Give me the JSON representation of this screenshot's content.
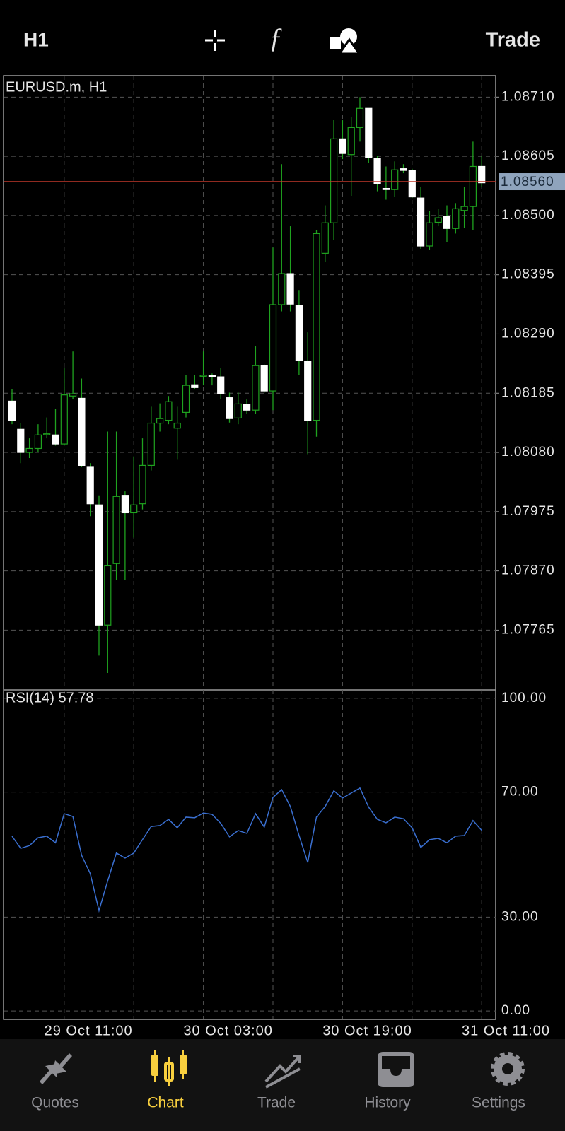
{
  "header": {
    "timeframe": "H1",
    "action": "Trade"
  },
  "chart_data": [
    {
      "type": "candlestick",
      "title": "EURUSD.m, H1",
      "categories": [
        null,
        null,
        null,
        null,
        null,
        null,
        "29 Oct 11:00",
        null,
        null,
        null,
        null,
        null,
        null,
        null,
        null,
        null,
        null,
        null,
        null,
        null,
        null,
        null,
        "30 Oct 03:00",
        null,
        null,
        null,
        null,
        null,
        null,
        null,
        null,
        null,
        null,
        null,
        null,
        null,
        null,
        null,
        "30 Oct 19:00",
        null,
        null,
        null,
        null,
        null,
        null,
        null,
        null,
        null,
        null,
        null,
        null,
        null,
        null,
        null,
        "31 Oct 11:00"
      ],
      "open": [
        1.08171,
        1.08121,
        1.0808,
        1.08087,
        1.08112,
        1.08111,
        1.08095,
        1.0818,
        1.08176,
        1.08055,
        1.07987,
        1.07774,
        1.07883,
        1.08004,
        1.07973,
        1.07989,
        1.08057,
        1.08132,
        1.08137,
        1.08123,
        1.08151,
        1.082,
        1.08215,
        1.08216,
        1.08214,
        1.08177,
        1.08141,
        1.08165,
        1.08155,
        1.08234,
        1.08189,
        1.08342,
        1.08397,
        1.0834,
        1.08241,
        1.08137,
        1.08433,
        1.08487,
        1.08636,
        1.08608,
        1.08656,
        1.0869,
        1.08601,
        1.08548,
        1.08546,
        1.08583,
        1.0858,
        1.08531,
        1.08446,
        1.08488,
        1.08498,
        1.08477,
        1.08509,
        1.08516,
        1.08587
      ],
      "high": [
        1.08192,
        1.08132,
        1.08105,
        1.0813,
        1.08142,
        1.08157,
        1.0823,
        1.08259,
        1.08211,
        1.08061,
        1.08004,
        1.08117,
        1.08117,
        1.08011,
        1.08073,
        1.08105,
        1.08161,
        1.08167,
        1.0818,
        1.08161,
        1.08217,
        1.08217,
        1.08259,
        1.0822,
        1.0823,
        1.08186,
        1.08186,
        1.08174,
        1.08268,
        1.08236,
        1.08443,
        1.08591,
        1.08481,
        1.08368,
        1.08293,
        1.08474,
        1.08518,
        1.08669,
        1.08669,
        1.08675,
        1.0871,
        1.0869,
        1.08606,
        1.08587,
        1.08596,
        1.08591,
        1.08583,
        1.0855,
        1.08508,
        1.08512,
        1.08518,
        1.08522,
        1.0855,
        1.08631,
        1.08606
      ],
      "low": [
        1.0813,
        1.08061,
        1.0807,
        1.0808,
        1.08105,
        1.08092,
        1.08092,
        1.08174,
        1.08055,
        1.07967,
        1.0772,
        1.07689,
        1.07854,
        1.07854,
        1.07929,
        1.07979,
        1.08048,
        1.08117,
        1.0813,
        1.08067,
        1.08142,
        1.08192,
        1.08199,
        1.08199,
        1.08174,
        1.08133,
        1.0813,
        1.08149,
        1.08149,
        1.08186,
        1.08155,
        1.0833,
        1.0833,
        1.08217,
        1.08077,
        1.08108,
        1.08418,
        1.08456,
        1.086,
        1.08535,
        1.08631,
        1.08593,
        1.08543,
        1.08528,
        1.08533,
        1.08575,
        1.08531,
        1.08441,
        1.08439,
        1.08481,
        1.08453,
        1.08468,
        1.08478,
        1.08474,
        1.0855
      ],
      "close": [
        1.08137,
        1.0808,
        1.08087,
        1.08111,
        1.08113,
        1.08095,
        1.08182,
        1.08184,
        1.08057,
        1.07989,
        1.07774,
        1.07879,
        1.08002,
        1.07973,
        1.07987,
        1.08057,
        1.08132,
        1.0814,
        1.0817,
        1.08132,
        1.08199,
        1.08195,
        1.08217,
        1.08215,
        1.08184,
        1.0814,
        1.08166,
        1.08155,
        1.08234,
        1.08189,
        1.08342,
        1.08397,
        1.08343,
        1.08243,
        1.08137,
        1.08468,
        1.08487,
        1.08636,
        1.0861,
        1.08656,
        1.0869,
        1.08603,
        1.08556,
        1.08546,
        1.08581,
        1.0858,
        1.08533,
        1.08446,
        1.08487,
        1.08496,
        1.08477,
        1.08512,
        1.08516,
        1.08587,
        1.08558
      ],
      "up_color": "#000000",
      "down_color": "#ffffff",
      "wick_color": "#1fa31f",
      "ylim": [
        1.07659,
        1.08748
      ],
      "yticks": [
        {
          "value": 1.0871,
          "label": "1.08710"
        },
        {
          "value": 1.08605,
          "label": "1.08605"
        },
        {
          "value": 1.085,
          "label": "1.08500"
        },
        {
          "value": 1.08395,
          "label": "1.08395"
        },
        {
          "value": 1.0829,
          "label": "1.08290"
        },
        {
          "value": 1.08185,
          "label": "1.08185"
        },
        {
          "value": 1.0808,
          "label": "1.08080"
        },
        {
          "value": 1.07975,
          "label": "1.07975"
        },
        {
          "value": 1.0787,
          "label": "1.07870"
        },
        {
          "value": 1.07765,
          "label": "1.07765"
        }
      ],
      "grid": true,
      "price_line": {
        "value": 1.0856,
        "label": "1.08560",
        "color": "#c0392b"
      }
    },
    {
      "type": "line",
      "title": "RSI(14) 57.78",
      "color": "#3a6fd0",
      "values": [
        55.9,
        52.0,
        52.9,
        55.4,
        55.9,
        53.8,
        63.1,
        62.2,
        49.8,
        43.9,
        32.1,
        41.6,
        50.5,
        48.9,
        50.5,
        54.8,
        59.0,
        59.3,
        61.3,
        58.6,
        62.0,
        61.8,
        63.3,
        62.9,
        60.0,
        55.7,
        57.7,
        56.8,
        63.1,
        58.8,
        68.3,
        70.8,
        65.4,
        56.1,
        47.5,
        62.0,
        65.4,
        70.4,
        68.1,
        69.7,
        71.3,
        65.2,
        61.3,
        60.2,
        62.0,
        61.5,
        58.6,
        52.3,
        54.8,
        55.2,
        53.8,
        55.9,
        56.1,
        60.9,
        57.78
      ],
      "ylim": [
        -2.7,
        102.7
      ],
      "yticks": [
        {
          "value": 100,
          "label": "100.00"
        },
        {
          "value": 70,
          "label": "70.00"
        },
        {
          "value": 30,
          "label": "30.00"
        },
        {
          "value": 0,
          "label": "0.00"
        }
      ],
      "grid": true
    }
  ],
  "tabs": {
    "items": [
      "Quotes",
      "Chart",
      "Trade",
      "History",
      "Settings"
    ],
    "active": 1,
    "active_color": "#f8cf3e",
    "color": "#8e8e93"
  }
}
